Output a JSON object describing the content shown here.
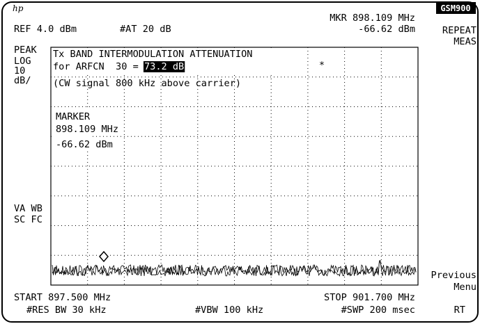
{
  "header": {
    "logo": "hp",
    "ref": "REF 4.0 dBm",
    "attenuation": "#AT 20 dB",
    "marker_freq": "MKR 898.109 MHz",
    "marker_level": "-66.62 dBm",
    "mode": "GSM900"
  },
  "left_annotations": [
    "PEAK",
    "LOG",
    "10",
    "dB/",
    "VA WB",
    "SC FC"
  ],
  "result": {
    "title": "Tx BAND INTERMODULATION ATTENUATION",
    "line_prefix": "for ARFCN  30 = ",
    "value": "73.2 dB",
    "note": "(CW signal 800 kHz above carrier)"
  },
  "asterisk": "*",
  "marker_readout": {
    "label": "MARKER",
    "freq": "898.109 MHz",
    "level": "-66.62 dBm"
  },
  "footer": {
    "start": "START 897.500 MHz",
    "rbw": "#RES BW 30 kHz",
    "vbw": "#VBW 100 kHz",
    "stop": "STOP 901.700 MHz",
    "sweep": "#SWP 200 msec"
  },
  "softkeys": [
    {
      "lines": [
        "REPEAT",
        "MEAS"
      ]
    },
    {
      "lines": [
        "Previous",
        "Menu"
      ]
    }
  ],
  "rt": "RT"
}
